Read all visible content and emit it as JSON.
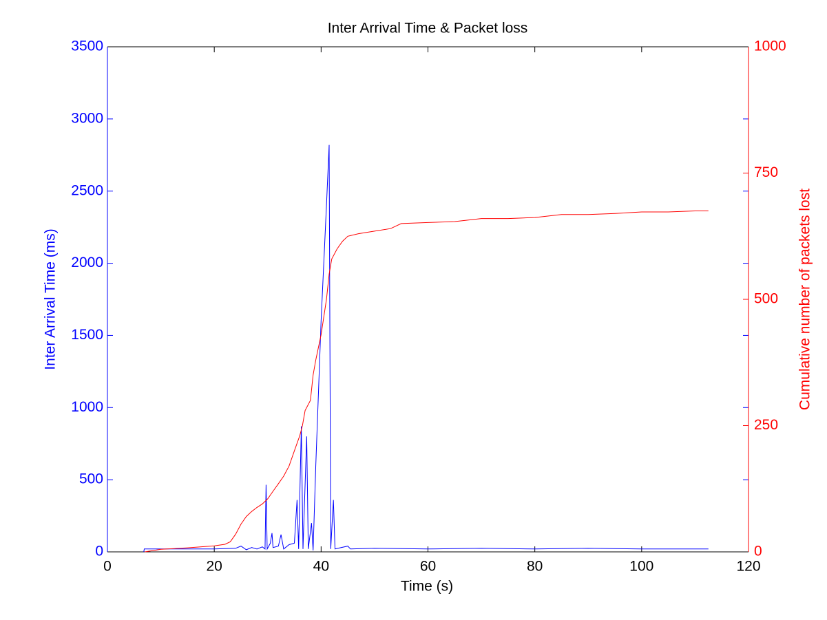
{
  "chart_data": {
    "type": "line",
    "title": "Inter Arrival Time & Packet loss",
    "xlabel": "Time (s)",
    "ylabel": "Inter Arrival Time (ms)",
    "y2label": "Cumulative number of packets lost",
    "xlim": [
      0,
      120
    ],
    "xticks": [
      0,
      20,
      40,
      60,
      80,
      100,
      120
    ],
    "ylim": [
      0,
      3500
    ],
    "yticks": [
      0,
      500,
      1000,
      1500,
      2000,
      2500,
      3000,
      3500
    ],
    "y2lim": [
      0,
      1000
    ],
    "y2ticks": [
      0,
      250,
      500,
      750,
      1000
    ],
    "series": [
      {
        "color": "#0000ff",
        "x": [
          6.8,
          6.9,
          10,
          15,
          20,
          24,
          25,
          26,
          27,
          28,
          29,
          29.5,
          29.7,
          29.9,
          30.5,
          30.8,
          31,
          32,
          32.5,
          33,
          34,
          35,
          35.5,
          35.8,
          36.3,
          36.6,
          37.3,
          37.6,
          38.2,
          38.5,
          39,
          40,
          41,
          41.5,
          41.8,
          42.3,
          42.6,
          45,
          45.5,
          50,
          60,
          70,
          80,
          90,
          100,
          110,
          112.5
        ],
        "values": [
          0,
          20,
          20,
          20,
          20,
          25,
          40,
          15,
          30,
          20,
          35,
          20,
          465,
          20,
          60,
          130,
          30,
          40,
          120,
          20,
          50,
          60,
          360,
          20,
          870,
          20,
          800,
          20,
          200,
          10,
          600,
          1600,
          2400,
          2820,
          20,
          360,
          20,
          40,
          20,
          25,
          20,
          25,
          20,
          25,
          20,
          20,
          20
        ]
      },
      {
        "color": "#ff0000",
        "axis": "y2",
        "x": [
          7,
          10,
          15,
          20,
          22,
          23,
          24,
          25,
          26,
          27,
          28,
          29,
          30,
          31,
          32,
          33,
          34,
          35,
          36,
          36.5,
          37,
          38,
          38.5,
          39,
          40,
          41,
          41.5,
          42,
          43,
          44,
          45,
          47,
          50,
          53,
          55,
          60,
          65,
          70,
          75,
          80,
          85,
          90,
          95,
          100,
          105,
          110,
          112.5
        ],
        "values": [
          0,
          5,
          8,
          12,
          15,
          20,
          35,
          55,
          70,
          80,
          88,
          95,
          105,
          120,
          135,
          150,
          170,
          200,
          230,
          250,
          280,
          300,
          350,
          380,
          430,
          500,
          550,
          580,
          600,
          615,
          625,
          630,
          635,
          640,
          650,
          652,
          654,
          660,
          660,
          662,
          668,
          668,
          670,
          673,
          673,
          675,
          675
        ]
      }
    ]
  }
}
